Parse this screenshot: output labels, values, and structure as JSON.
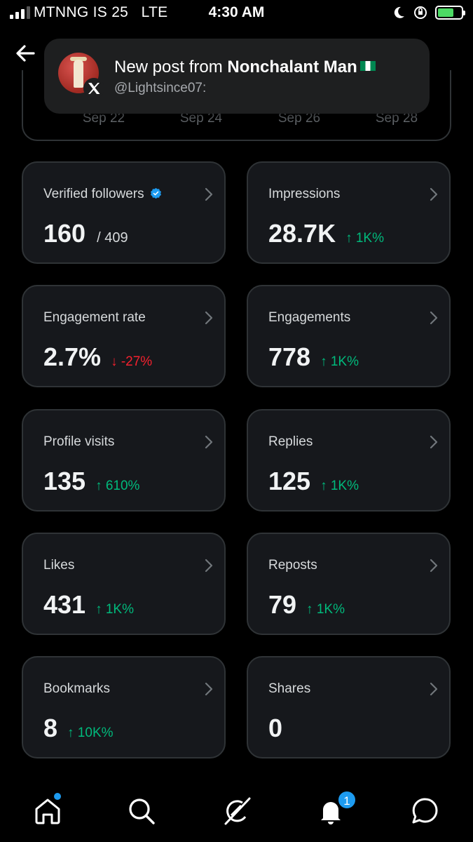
{
  "status_bar": {
    "carrier": "MTNNG IS 25",
    "network": "LTE",
    "time": "4:30 AM"
  },
  "notification": {
    "prefix": "New post from ",
    "author": "Nonchalant Man",
    "handle": "@Lightsince07:"
  },
  "chart": {
    "x_ticks": [
      "Sep 22",
      "Sep 24",
      "Sep 26",
      "Sep 28"
    ]
  },
  "metrics": [
    {
      "label": "Verified followers",
      "value": "160",
      "secondary": "/ 409",
      "change": "",
      "direction": "none"
    },
    {
      "label": "Impressions",
      "value": "28.7K",
      "secondary": "",
      "change": "↑ 1K%",
      "direction": "up"
    },
    {
      "label": "Engagement rate",
      "value": "2.7%",
      "secondary": "",
      "change": "↓ -27%",
      "direction": "down"
    },
    {
      "label": "Engagements",
      "value": "778",
      "secondary": "",
      "change": "↑ 1K%",
      "direction": "up"
    },
    {
      "label": "Profile visits",
      "value": "135",
      "secondary": "",
      "change": "↑ 610%",
      "direction": "up"
    },
    {
      "label": "Replies",
      "value": "125",
      "secondary": "",
      "change": "↑ 1K%",
      "direction": "up"
    },
    {
      "label": "Likes",
      "value": "431",
      "secondary": "",
      "change": "↑ 1K%",
      "direction": "up"
    },
    {
      "label": "Reposts",
      "value": "79",
      "secondary": "",
      "change": "↑ 1K%",
      "direction": "up"
    },
    {
      "label": "Bookmarks",
      "value": "8",
      "secondary": "",
      "change": "↑ 10K%",
      "direction": "up"
    },
    {
      "label": "Shares",
      "value": "0",
      "secondary": "",
      "change": "",
      "direction": "none"
    }
  ],
  "tabbar": {
    "notification_count": "1",
    "icons": [
      "home-icon",
      "search-icon",
      "grok-icon",
      "bell-icon",
      "messages-icon"
    ]
  },
  "colors": {
    "accent": "#1d9bf0",
    "positive": "#00ba7c",
    "negative": "#f4212e",
    "card_border": "#2f3336"
  }
}
